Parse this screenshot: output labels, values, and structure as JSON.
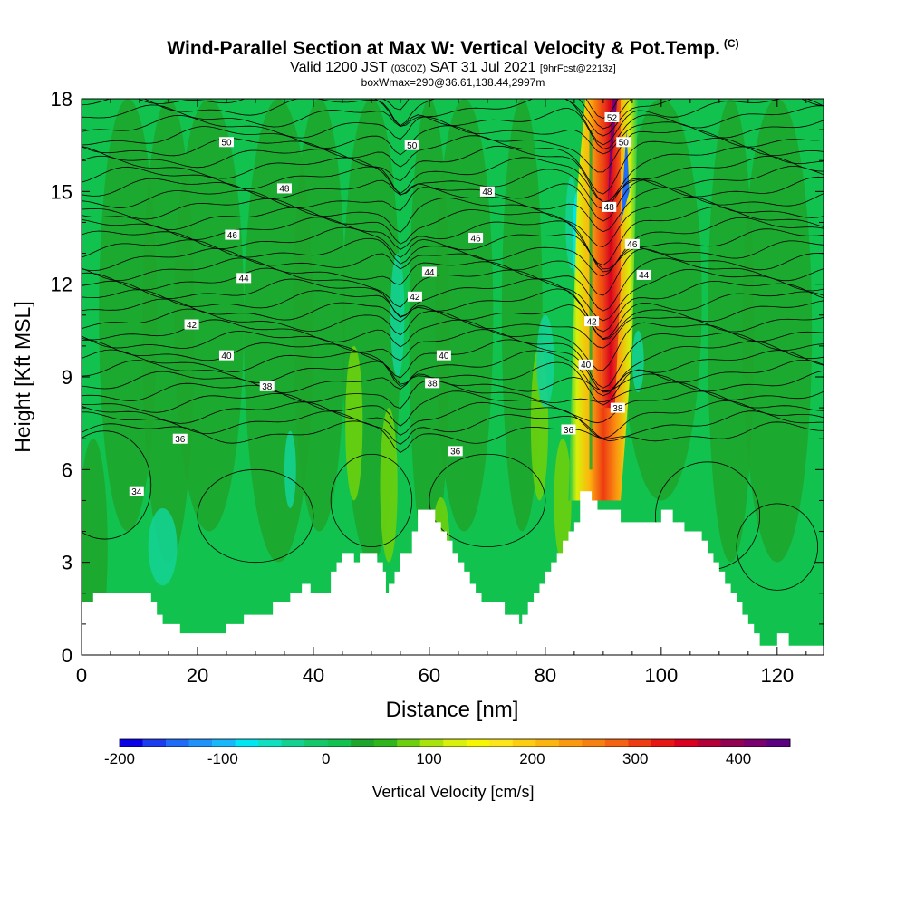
{
  "title": {
    "main": "Wind-Parallel Section at Max W: Vertical Velocity & Pot.Temp.",
    "main_tag": "(C)",
    "sub_a": "Valid 1200 JST",
    "sub_b": "(0300Z)",
    "sub_c": "SAT 31 Jul 2021",
    "sub_d": "[9hrFcst@2213z]",
    "sub3": "boxWmax=290@36.61,138.44,2997m"
  },
  "colors": {
    "background_green": "#12c24e",
    "dark_green": "#1ea52c",
    "contour": "#000000",
    "terrain": "#ffffff"
  },
  "chart_data": {
    "type": "area",
    "xlabel": "Distance [nm]",
    "ylabel": "Height [Kft MSL]",
    "xlim": [
      0,
      128
    ],
    "ylim": [
      0,
      18
    ],
    "xticks": [
      0,
      20,
      40,
      60,
      80,
      100,
      120
    ],
    "yticks": [
      0,
      3,
      6,
      9,
      12,
      15,
      18
    ],
    "terrain": {
      "x": [
        0,
        1,
        2,
        11,
        12,
        13,
        14,
        16,
        17,
        19,
        24,
        25,
        27,
        28,
        33,
        35,
        36,
        37,
        38,
        39,
        39.5,
        40,
        42,
        43,
        44,
        45,
        46,
        47,
        48,
        49,
        50,
        51,
        52,
        52.5,
        53,
        54,
        55,
        57,
        58,
        59,
        60,
        61,
        62,
        63,
        64,
        65,
        66,
        67,
        68,
        69,
        70,
        71,
        72,
        73,
        74,
        75,
        75.5,
        76,
        77,
        78,
        79,
        80,
        81,
        82,
        83,
        84,
        85,
        86,
        87,
        88,
        89,
        90,
        91,
        92,
        93,
        94,
        95,
        96,
        97,
        98,
        99,
        100,
        101,
        102,
        103,
        104,
        105,
        106,
        107,
        108,
        109,
        110,
        111,
        112,
        113,
        114,
        115,
        116,
        117,
        118,
        119,
        120,
        121,
        122,
        123,
        124,
        124.5,
        125,
        128
      ],
      "height": [
        1.7,
        1.7,
        2.0,
        2.0,
        1.7,
        1.3,
        1.0,
        1.0,
        0.7,
        0.7,
        0.7,
        1.0,
        1.0,
        1.3,
        1.7,
        1.7,
        2.0,
        2.0,
        2.3,
        2.3,
        2.0,
        2.0,
        2.0,
        2.7,
        3.0,
        3.3,
        3.3,
        3.0,
        3.3,
        3.3,
        3.3,
        3.0,
        2.7,
        2.0,
        2.3,
        2.7,
        3.3,
        4.0,
        4.7,
        4.7,
        4.7,
        4.3,
        4.0,
        3.7,
        3.3,
        3.0,
        2.7,
        2.3,
        2.0,
        1.7,
        1.7,
        1.7,
        1.7,
        1.3,
        1.3,
        1.3,
        1.0,
        1.3,
        1.7,
        2.0,
        2.3,
        2.7,
        3.0,
        3.3,
        3.7,
        4.0,
        4.3,
        5.3,
        5.3,
        5.0,
        4.7,
        4.7,
        4.7,
        4.7,
        4.3,
        4.3,
        4.3,
        4.3,
        4.3,
        4.3,
        4.3,
        4.7,
        4.7,
        4.3,
        4.3,
        4.0,
        4.0,
        4.0,
        3.7,
        3.3,
        3.0,
        2.7,
        2.3,
        2.0,
        1.7,
        1.3,
        1.0,
        0.7,
        0.3,
        0.3,
        0.3,
        0.7,
        0.7,
        0.3,
        0.3,
        0.3,
        0.3,
        0.3,
        0.3
      ]
    },
    "contour_labels": [
      {
        "x": 25,
        "y": 16.6,
        "text": "50"
      },
      {
        "x": 57,
        "y": 16.5,
        "text": "50"
      },
      {
        "x": 93.5,
        "y": 16.6,
        "text": "50"
      },
      {
        "x": 91.5,
        "y": 17.4,
        "text": "52"
      },
      {
        "x": 35,
        "y": 15.1,
        "text": "48"
      },
      {
        "x": 70,
        "y": 15.0,
        "text": "48"
      },
      {
        "x": 91,
        "y": 14.5,
        "text": "48"
      },
      {
        "x": 26,
        "y": 13.6,
        "text": "46"
      },
      {
        "x": 68,
        "y": 13.5,
        "text": "46"
      },
      {
        "x": 95,
        "y": 13.3,
        "text": "46"
      },
      {
        "x": 28,
        "y": 12.2,
        "text": "44"
      },
      {
        "x": 60,
        "y": 12.4,
        "text": "44"
      },
      {
        "x": 97,
        "y": 12.3,
        "text": "44"
      },
      {
        "x": 19,
        "y": 10.7,
        "text": "42"
      },
      {
        "x": 57.5,
        "y": 11.6,
        "text": "42"
      },
      {
        "x": 88,
        "y": 10.8,
        "text": "42"
      },
      {
        "x": 25,
        "y": 9.7,
        "text": "40"
      },
      {
        "x": 62.5,
        "y": 9.7,
        "text": "40"
      },
      {
        "x": 87,
        "y": 9.4,
        "text": "40"
      },
      {
        "x": 32,
        "y": 8.7,
        "text": "38"
      },
      {
        "x": 60.5,
        "y": 8.8,
        "text": "38"
      },
      {
        "x": 92.5,
        "y": 8.0,
        "text": "38"
      },
      {
        "x": 17,
        "y": 7.0,
        "text": "36"
      },
      {
        "x": 64.5,
        "y": 6.6,
        "text": "36"
      },
      {
        "x": 84,
        "y": 7.3,
        "text": "36"
      },
      {
        "x": 9.5,
        "y": 5.3,
        "text": "34"
      }
    ],
    "colorbar": {
      "label": "Vertical Velocity [cm/s]",
      "min": -200,
      "max": 450,
      "ticks": [
        -200,
        -100,
        0,
        100,
        200,
        300,
        400
      ],
      "colors": [
        "#0a00e6",
        "#1c3cf0",
        "#1f6cf7",
        "#1f93fb",
        "#16b8fb",
        "#00e6f2",
        "#0fe0c0",
        "#14d192",
        "#14c86a",
        "#12c24e",
        "#1ea52c",
        "#2eb61a",
        "#6cd010",
        "#a8e40c",
        "#d9f00a",
        "#f6f600",
        "#fde51a",
        "#fdcd12",
        "#fcb50e",
        "#fb9a10",
        "#f88012",
        "#f46212",
        "#ee3b12",
        "#e71612",
        "#d8001e",
        "#b40038",
        "#920052",
        "#7a0070",
        "#5c0082"
      ]
    }
  }
}
